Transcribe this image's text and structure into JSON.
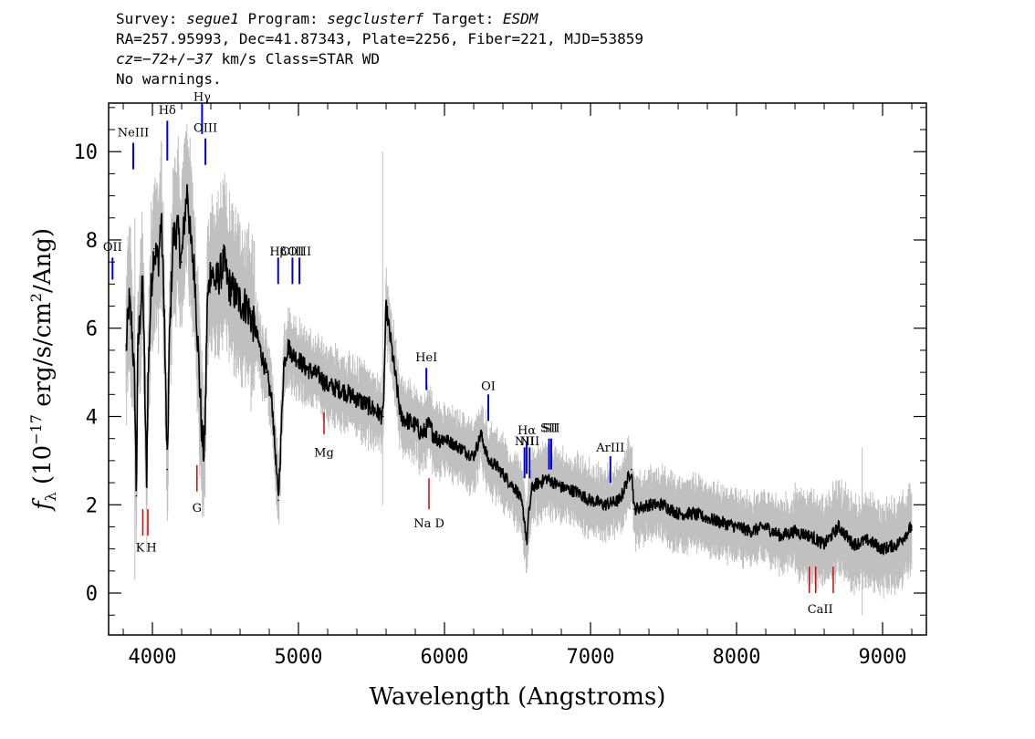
{
  "header": {
    "survey_label": "Survey:",
    "survey": "segue1",
    "program_label": "Program:",
    "program": "segclusterf",
    "target_label": "Target:",
    "target": "ESDM",
    "line2": "RA=257.95993, Dec=41.87343, Plate=2256, Fiber=221, MJD=53859",
    "cz_label": "cz",
    "cz_value": "=−72+/−37",
    "cz_rest": " km/s Class=STAR WD",
    "line4": "No warnings."
  },
  "colors": {
    "flux": "#000000",
    "error_band": "#c0c0c0",
    "emission": "#0000dd",
    "absorption": "#dd0000"
  },
  "chart_data": {
    "type": "line",
    "xlabel": "Wavelength (Angstroms)",
    "ylabel_main": "f",
    "ylabel_sub": "λ",
    "ylabel_rest": " (10",
    "ylabel_exp": "−17",
    "ylabel_units": " erg/s/cm",
    "ylabel_exp2": "2",
    "ylabel_end": "/Ang)",
    "xlim": [
      3700,
      9300
    ],
    "ylim": [
      -0.95,
      11.1
    ],
    "xticks": [
      4000,
      5000,
      6000,
      7000,
      8000,
      9000
    ],
    "xtick_labels": [
      "4000",
      "5000",
      "6000",
      "7000",
      "8000",
      "9000"
    ],
    "yticks": [
      0,
      2,
      4,
      6,
      8,
      10
    ],
    "ytick_labels": [
      "0",
      "2",
      "4",
      "6",
      "8",
      "10"
    ],
    "grid": false,
    "series": [
      {
        "x": [
          3820,
          3840,
          3860,
          3880,
          3890,
          3900,
          3920,
          3935,
          3950,
          3960,
          3970,
          3990,
          4010,
          4040,
          4060,
          4080,
          4095,
          4102,
          4115,
          4140,
          4170,
          4200,
          4220,
          4240,
          4260,
          4290,
          4320,
          4340,
          4355,
          4365,
          4375,
          4400,
          4430,
          4460,
          4490,
          4520,
          4560,
          4600,
          4650,
          4700,
          4740,
          4780,
          4820,
          4845,
          4862,
          4880,
          4900,
          4930,
          4960,
          5000,
          5050,
          5100,
          5150,
          5200,
          5300,
          5400,
          5500,
          5580,
          5600,
          5700,
          5800,
          5850,
          5890,
          5950,
          6000,
          6100,
          6200,
          6250,
          6300,
          6350,
          6400,
          6450,
          6500,
          6530,
          6550,
          6563,
          6575,
          6600,
          6650,
          6700,
          6800,
          6900,
          7000,
          7100,
          7200,
          7280,
          7300,
          7400,
          7500,
          7600,
          7700,
          7800,
          7900,
          8000,
          8100,
          8200,
          8300,
          8400,
          8500,
          8600,
          8700,
          8800,
          8900,
          9000,
          9100,
          9150,
          9200
        ],
        "y": [
          5.5,
          6.6,
          6.0,
          4.5,
          2.2,
          5.5,
          6.5,
          7.0,
          4.2,
          2.5,
          4.8,
          6.8,
          7.8,
          7.5,
          8.5,
          6.5,
          3.8,
          2.8,
          5.5,
          8.0,
          8.3,
          7.5,
          8.5,
          9.2,
          8.0,
          7.2,
          5.0,
          3.5,
          3.1,
          4.5,
          6.5,
          7.4,
          7.0,
          7.2,
          7.5,
          7.0,
          6.8,
          6.6,
          6.5,
          6.0,
          5.5,
          5.0,
          4.3,
          3.0,
          2.1,
          3.5,
          5.2,
          5.6,
          5.4,
          5.3,
          5.1,
          5.0,
          4.9,
          4.7,
          4.6,
          4.4,
          4.2,
          4.0,
          6.5,
          4.0,
          3.8,
          3.6,
          3.8,
          3.5,
          3.5,
          3.3,
          3.1,
          3.6,
          3.0,
          2.9,
          2.7,
          2.5,
          2.3,
          2.0,
          1.6,
          1.1,
          1.7,
          2.4,
          2.5,
          2.6,
          2.4,
          2.3,
          2.1,
          2.0,
          2.1,
          2.8,
          1.9,
          2.0,
          2.0,
          1.8,
          1.8,
          1.7,
          1.6,
          1.5,
          1.4,
          1.5,
          1.3,
          1.4,
          1.3,
          1.1,
          1.5,
          1.1,
          1.2,
          1.0,
          1.1,
          1.3,
          1.5
        ]
      }
    ],
    "emission_lines": [
      {
        "label": "NeIII",
        "x": 3869,
        "y_bottom": 9.6,
        "y_top": 10.2,
        "label_y": 10.35
      },
      {
        "label": "Hδ",
        "x": 4102,
        "y_bottom": 9.8,
        "y_top": 10.7,
        "label_y": 10.85
      },
      {
        "label": "Hγ",
        "x": 4340,
        "y_bottom": 10.4,
        "y_top": 11.1,
        "label_y": 11.15
      },
      {
        "label": "OIII",
        "x": 4363,
        "y_bottom": 9.7,
        "y_top": 10.3,
        "label_y": 10.45
      },
      {
        "label": "OII",
        "x": 3727,
        "y_bottom": 7.1,
        "y_top": 7.6,
        "label_y": 7.75
      },
      {
        "label": "Hβ",
        "x": 4861,
        "y_bottom": 7.0,
        "y_top": 7.6,
        "label_y": 7.65
      },
      {
        "label": "OIII",
        "x": 4959,
        "y_bottom": 7.0,
        "y_top": 7.6,
        "label_y": 7.65
      },
      {
        "label": "OIII",
        "x": 5007,
        "y_bottom": 7.0,
        "y_top": 7.6,
        "label_y": 7.65
      },
      {
        "label": "HeI",
        "x": 5876,
        "y_bottom": 4.6,
        "y_top": 5.1,
        "label_y": 5.25
      },
      {
        "label": "OI",
        "x": 6300,
        "y_bottom": 3.9,
        "y_top": 4.5,
        "label_y": 4.6
      },
      {
        "label": "NII",
        "x": 6548,
        "y_bottom": 2.6,
        "y_top": 3.3,
        "label_y": 3.35
      },
      {
        "label": "Hα",
        "x": 6563,
        "y_bottom": 2.7,
        "y_top": 3.4,
        "label_y": 3.6
      },
      {
        "label": "NII",
        "x": 6583,
        "y_bottom": 2.6,
        "y_top": 3.3,
        "label_y": 3.35
      },
      {
        "label": "SII",
        "x": 6716,
        "y_bottom": 2.8,
        "y_top": 3.5,
        "label_y": 3.65
      },
      {
        "label": "SII",
        "x": 6731,
        "y_bottom": 2.8,
        "y_top": 3.5,
        "label_y": 3.65
      },
      {
        "label": "ArIII",
        "x": 7136,
        "y_bottom": 2.5,
        "y_top": 3.1,
        "label_y": 3.2
      }
    ],
    "absorption_lines": [
      {
        "label": "K",
        "x": 3934,
        "y_bottom": 1.3,
        "y_top": 1.9,
        "label_y": 1.15,
        "label_dx": -3
      },
      {
        "label": "H",
        "x": 3969,
        "y_bottom": 1.3,
        "y_top": 1.9,
        "label_y": 1.15,
        "label_dx": 4
      },
      {
        "label": "G",
        "x": 4305,
        "y_bottom": 2.3,
        "y_top": 2.9,
        "label_y": 2.05,
        "label_dx": 0
      },
      {
        "label": "Mg",
        "x": 5175,
        "y_bottom": 3.6,
        "y_top": 4.1,
        "label_y": 3.3,
        "label_dx": 0
      },
      {
        "label": "Na D",
        "x": 5894,
        "y_bottom": 1.9,
        "y_top": 2.6,
        "label_y": 1.7,
        "label_dx": 0
      },
      {
        "label": "CaII",
        "x": 8498,
        "y_bottom": 0.0,
        "y_top": 0.6,
        "label_y": -0.25,
        "label_dx": 12
      },
      {
        "label": "",
        "x": 8542,
        "y_bottom": 0.0,
        "y_top": 0.6,
        "label_y": -0.25,
        "label_dx": 0
      },
      {
        "label": "",
        "x": 8662,
        "y_bottom": 0.0,
        "y_top": 0.6,
        "label_y": -0.25,
        "label_dx": 0
      }
    ]
  }
}
